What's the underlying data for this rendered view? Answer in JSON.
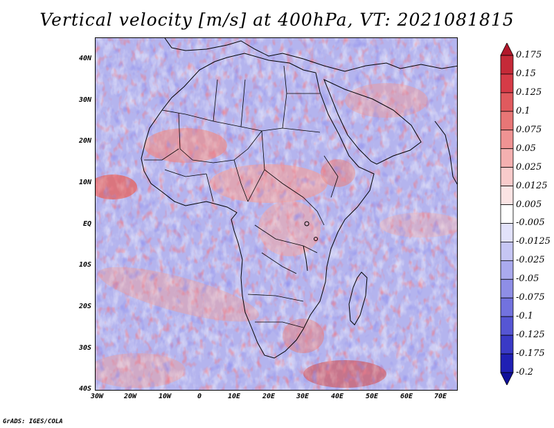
{
  "title": "Vertical velocity [m/s] at 400hPa, VT: 2021081815",
  "footer": "GrADS: IGES/COLA",
  "latitude_labels": [
    "40N",
    "30N",
    "20N",
    "10N",
    "EQ",
    "10S",
    "20S",
    "30S",
    "40S"
  ],
  "longitude_labels": [
    "30W",
    "20W",
    "10W",
    "0",
    "10E",
    "20E",
    "30E",
    "40E",
    "50E",
    "60E",
    "70E"
  ],
  "colorbar": {
    "labels": [
      "0.175",
      "0.15",
      "0.125",
      "0.1",
      "0.075",
      "0.05",
      "0.025",
      "0.0125",
      "0.005",
      "-0.005",
      "-0.0125",
      "-0.025",
      "-0.05",
      "-0.075",
      "-0.1",
      "-0.125",
      "-0.175",
      "-0.2"
    ],
    "colors": [
      "#b2182b",
      "#c52a38",
      "#d63b47",
      "#e05a5e",
      "#e87676",
      "#ef9393",
      "#f4b0b0",
      "#f8cbcb",
      "#fbe4e4",
      "#ffffff",
      "#e2e2fb",
      "#c6c6f4",
      "#aaaaee",
      "#8e8ee6",
      "#7272de",
      "#5656d4",
      "#3a3ac6",
      "#2020b4",
      "#10109a"
    ]
  }
}
